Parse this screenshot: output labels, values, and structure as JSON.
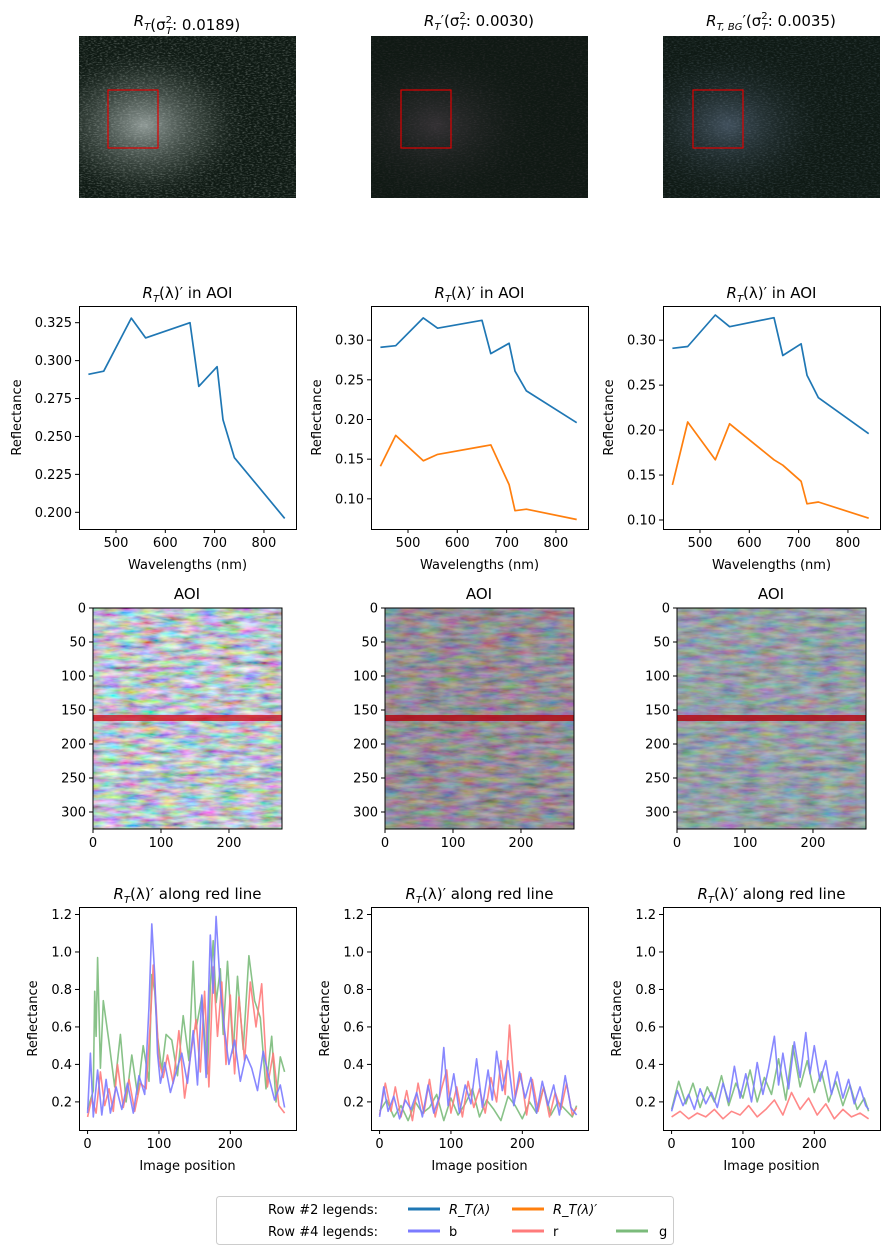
{
  "colors": {
    "rt": "#1f77b4",
    "rtp": "#ff7f0e",
    "b": "#7b7bff",
    "r": "#ff7b7b",
    "g": "#7bbb7b",
    "roi": "#e00000"
  },
  "row1": {
    "titles": [
      {
        "base": "R",
        "sub": "T",
        "prime": "",
        "text": "(σ",
        "sup2": "2",
        "sub2": "T",
        "val": ": 0.0189)"
      },
      {
        "base": "R",
        "sub": "T",
        "prime": "′",
        "text": "(σ",
        "sup2": "2",
        "sub2": "T",
        "val": ": 0.0030)"
      },
      {
        "base": "R",
        "sub": "T, BG",
        "prime": "′",
        "text": "(σ",
        "sup2": "2",
        "sub2": "T",
        "val": ": 0.0035)"
      }
    ]
  },
  "row2": {
    "title_suffix": " in AOI",
    "xlabel": "Wavelengths (nm)",
    "ylabel": "Reflectance"
  },
  "row3": {
    "title": "AOI"
  },
  "row4": {
    "title_suffix": " along red line",
    "xlabel": "Image position",
    "ylabel": "Reflectance"
  },
  "legend": {
    "row2_label": "Row #2 legends:",
    "row4_label": "Row #4 legends:",
    "rt_label": "R_T(λ)",
    "rtp_label": "R_T(λ)′",
    "b_label": "b",
    "r_label": "r",
    "g_label": "g"
  },
  "chart_data": [
    {
      "type": "line",
      "panel": "row2-col1",
      "title": "R_T(λ)′ in AOI",
      "xlabel": "Wavelengths (nm)",
      "ylabel": "Reflectance",
      "xlim": [
        425,
        865
      ],
      "ylim": [
        0.189,
        0.336
      ],
      "xticks": [
        500,
        600,
        700,
        800
      ],
      "yticks": [
        0.2,
        0.225,
        0.25,
        0.275,
        0.3,
        0.325
      ],
      "ytick_labels": [
        "0.200",
        "0.225",
        "0.250",
        "0.275",
        "0.300",
        "0.325"
      ],
      "series": [
        {
          "color_key": "rt",
          "x": [
            444,
            475,
            531,
            560,
            650,
            668,
            705,
            717,
            740,
            842
          ],
          "y": [
            0.291,
            0.293,
            0.328,
            0.315,
            0.325,
            0.283,
            0.296,
            0.261,
            0.236,
            0.196
          ]
        }
      ]
    },
    {
      "type": "line",
      "panel": "row2-col2",
      "title": "R_T(λ)′ in AOI",
      "xlabel": "Wavelengths (nm)",
      "ylabel": "Reflectance",
      "xlim": [
        425,
        865
      ],
      "ylim": [
        0.062,
        0.343
      ],
      "xticks": [
        500,
        600,
        700,
        800
      ],
      "yticks": [
        0.1,
        0.15,
        0.2,
        0.25,
        0.3
      ],
      "ytick_labels": [
        "0.10",
        "0.15",
        "0.20",
        "0.25",
        "0.30"
      ],
      "series": [
        {
          "color_key": "rt",
          "x": [
            444,
            475,
            531,
            560,
            650,
            668,
            705,
            717,
            740,
            842
          ],
          "y": [
            0.291,
            0.293,
            0.328,
            0.315,
            0.325,
            0.283,
            0.296,
            0.261,
            0.236,
            0.196
          ]
        },
        {
          "color_key": "rtp",
          "x": [
            444,
            475,
            531,
            560,
            650,
            668,
            705,
            717,
            740,
            842
          ],
          "y": [
            0.141,
            0.18,
            0.148,
            0.156,
            0.166,
            0.168,
            0.118,
            0.085,
            0.087,
            0.074
          ]
        }
      ]
    },
    {
      "type": "line",
      "panel": "row2-col3",
      "title": "R_T(λ)′ in AOI",
      "xlabel": "Wavelengths (nm)",
      "ylabel": "Reflectance",
      "xlim": [
        425,
        865
      ],
      "ylim": [
        0.09,
        0.338
      ],
      "xticks": [
        500,
        600,
        700,
        800
      ],
      "yticks": [
        0.1,
        0.15,
        0.2,
        0.25,
        0.3
      ],
      "ytick_labels": [
        "0.10",
        "0.15",
        "0.20",
        "0.25",
        "0.30"
      ],
      "series": [
        {
          "color_key": "rt",
          "x": [
            444,
            475,
            531,
            560,
            650,
            668,
            705,
            717,
            740,
            842
          ],
          "y": [
            0.291,
            0.293,
            0.328,
            0.315,
            0.325,
            0.283,
            0.296,
            0.261,
            0.236,
            0.196
          ]
        },
        {
          "color_key": "rtp",
          "x": [
            444,
            475,
            531,
            560,
            650,
            668,
            705,
            717,
            740,
            842
          ],
          "y": [
            0.139,
            0.209,
            0.167,
            0.207,
            0.167,
            0.161,
            0.143,
            0.118,
            0.12,
            0.102
          ]
        }
      ]
    },
    {
      "type": "line",
      "panel": "row4-col1",
      "title": "R_T(λ)′ along red line",
      "xlabel": "Image position",
      "ylabel": "Reflectance",
      "xlim": [
        -12,
        292
      ],
      "ylim": [
        0.05,
        1.24
      ],
      "xticks": [
        0,
        100,
        200
      ],
      "yticks": [
        0.2,
        0.4,
        0.6,
        0.8,
        1.0,
        1.2
      ],
      "ytick_labels": [
        "0.2",
        "0.4",
        "0.6",
        "0.8",
        "1.0",
        "1.2"
      ],
      "series": [
        {
          "color_key": "g",
          "x": [
            0,
            8,
            10,
            12,
            14,
            18,
            22,
            30,
            38,
            46,
            54,
            62,
            70,
            78,
            86,
            90,
            94,
            98,
            104,
            110,
            118,
            126,
            134,
            142,
            148,
            152,
            160,
            168,
            172,
            176,
            180,
            186,
            190,
            196,
            204,
            210,
            218,
            226,
            234,
            242,
            250,
            258,
            264,
            270,
            276
          ],
          "y": [
            0.16,
            0.26,
            0.79,
            0.55,
            0.97,
            0.38,
            0.74,
            0.52,
            0.28,
            0.56,
            0.2,
            0.45,
            0.24,
            0.5,
            0.31,
            0.88,
            0.79,
            0.55,
            0.37,
            0.56,
            0.53,
            0.34,
            0.66,
            0.42,
            0.95,
            0.59,
            0.76,
            0.35,
            0.82,
            1.06,
            0.73,
            0.91,
            0.56,
            0.95,
            0.46,
            0.87,
            0.48,
            0.98,
            0.74,
            0.65,
            0.27,
            0.55,
            0.2,
            0.44,
            0.36
          ]
        },
        {
          "color_key": "r",
          "x": [
            0,
            6,
            12,
            18,
            24,
            30,
            36,
            42,
            50,
            58,
            66,
            74,
            82,
            88,
            92,
            96,
            100,
            106,
            112,
            120,
            128,
            136,
            144,
            152,
            158,
            164,
            170,
            176,
            182,
            188,
            194,
            200,
            206,
            212,
            220,
            228,
            236,
            244,
            252,
            260,
            268,
            276
          ],
          "y": [
            0.12,
            0.22,
            0.14,
            0.36,
            0.18,
            0.27,
            0.15,
            0.4,
            0.17,
            0.32,
            0.15,
            0.3,
            0.27,
            0.63,
            0.93,
            0.71,
            0.42,
            0.33,
            0.45,
            0.3,
            0.58,
            0.22,
            0.44,
            0.64,
            0.36,
            0.79,
            0.28,
            0.92,
            0.55,
            0.84,
            0.4,
            0.77,
            0.35,
            0.76,
            0.42,
            0.84,
            0.6,
            0.83,
            0.28,
            0.46,
            0.18,
            0.14
          ]
        },
        {
          "color_key": "b",
          "x": [
            0,
            4,
            8,
            14,
            20,
            26,
            32,
            40,
            48,
            56,
            64,
            72,
            80,
            86,
            90,
            94,
            98,
            102,
            108,
            116,
            124,
            132,
            140,
            148,
            154,
            160,
            166,
            172,
            176,
            180,
            186,
            192,
            198,
            206,
            214,
            222,
            230,
            238,
            246,
            254,
            262,
            270,
            276
          ],
          "y": [
            0.14,
            0.46,
            0.12,
            0.37,
            0.13,
            0.32,
            0.14,
            0.28,
            0.16,
            0.3,
            0.14,
            0.34,
            0.24,
            0.71,
            1.15,
            0.88,
            0.46,
            0.3,
            0.41,
            0.25,
            0.36,
            0.46,
            0.3,
            0.58,
            0.29,
            0.77,
            0.33,
            1.09,
            0.78,
            1.19,
            0.81,
            0.58,
            0.4,
            0.53,
            0.31,
            0.45,
            0.38,
            0.26,
            0.47,
            0.33,
            0.21,
            0.29,
            0.17
          ]
        }
      ]
    },
    {
      "type": "line",
      "panel": "row4-col2",
      "title": "R_T(λ)′ along red line",
      "xlabel": "Image position",
      "ylabel": "Reflectance",
      "xlim": [
        -12,
        292
      ],
      "ylim": [
        0.05,
        1.24
      ],
      "xticks": [
        0,
        100,
        200
      ],
      "yticks": [
        0.2,
        0.4,
        0.6,
        0.8,
        1.0,
        1.2
      ],
      "ytick_labels": [
        "0.2",
        "0.4",
        "0.6",
        "0.8",
        "1.0",
        "1.2"
      ],
      "series": [
        {
          "color_key": "g",
          "x": [
            0,
            10,
            20,
            30,
            40,
            50,
            60,
            70,
            80,
            90,
            100,
            110,
            120,
            130,
            140,
            150,
            160,
            170,
            180,
            190,
            200,
            210,
            220,
            230,
            240,
            250,
            260,
            270,
            276
          ],
          "y": [
            0.15,
            0.21,
            0.12,
            0.18,
            0.1,
            0.2,
            0.14,
            0.17,
            0.24,
            0.1,
            0.22,
            0.13,
            0.19,
            0.27,
            0.12,
            0.21,
            0.16,
            0.1,
            0.23,
            0.18,
            0.11,
            0.2,
            0.14,
            0.28,
            0.13,
            0.2,
            0.16,
            0.12,
            0.18
          ]
        },
        {
          "color_key": "r",
          "x": [
            0,
            8,
            16,
            22,
            30,
            38,
            46,
            54,
            62,
            70,
            78,
            86,
            94,
            100,
            108,
            116,
            124,
            132,
            140,
            148,
            156,
            164,
            170,
            176,
            182,
            190,
            198,
            206,
            214,
            222,
            230,
            238,
            246,
            254,
            262,
            270,
            276
          ],
          "y": [
            0.13,
            0.3,
            0.15,
            0.28,
            0.12,
            0.26,
            0.1,
            0.3,
            0.14,
            0.32,
            0.12,
            0.26,
            0.37,
            0.14,
            0.28,
            0.12,
            0.31,
            0.17,
            0.27,
            0.14,
            0.33,
            0.2,
            0.42,
            0.24,
            0.61,
            0.22,
            0.35,
            0.13,
            0.32,
            0.15,
            0.28,
            0.12,
            0.25,
            0.16,
            0.3,
            0.13,
            0.17
          ]
        },
        {
          "color_key": "b",
          "x": [
            0,
            6,
            12,
            20,
            28,
            36,
            44,
            52,
            60,
            68,
            76,
            84,
            90,
            96,
            104,
            112,
            120,
            128,
            136,
            144,
            152,
            158,
            164,
            172,
            180,
            188,
            196,
            204,
            212,
            220,
            228,
            236,
            244,
            252,
            260,
            268,
            276
          ],
          "y": [
            0.12,
            0.28,
            0.15,
            0.23,
            0.11,
            0.21,
            0.16,
            0.25,
            0.12,
            0.29,
            0.14,
            0.23,
            0.49,
            0.18,
            0.35,
            0.14,
            0.29,
            0.19,
            0.43,
            0.17,
            0.37,
            0.21,
            0.47,
            0.26,
            0.42,
            0.18,
            0.36,
            0.22,
            0.33,
            0.14,
            0.31,
            0.18,
            0.29,
            0.13,
            0.34,
            0.17,
            0.13
          ]
        }
      ]
    },
    {
      "type": "line",
      "panel": "row4-col3",
      "title": "R_T(λ)′ along red line",
      "xlabel": "Image position",
      "ylabel": "Reflectance",
      "xlim": [
        -12,
        292
      ],
      "ylim": [
        0.05,
        1.24
      ],
      "xticks": [
        0,
        100,
        200
      ],
      "yticks": [
        0.2,
        0.4,
        0.6,
        0.8,
        1.0,
        1.2
      ],
      "ytick_labels": [
        "0.2",
        "0.4",
        "0.6",
        "0.8",
        "1.0",
        "1.2"
      ],
      "series": [
        {
          "color_key": "g",
          "x": [
            0,
            10,
            20,
            30,
            40,
            50,
            60,
            70,
            80,
            90,
            100,
            110,
            120,
            130,
            140,
            150,
            160,
            170,
            180,
            190,
            200,
            210,
            220,
            230,
            240,
            250,
            260,
            270,
            276
          ],
          "y": [
            0.16,
            0.31,
            0.19,
            0.3,
            0.17,
            0.28,
            0.2,
            0.34,
            0.18,
            0.3,
            0.22,
            0.37,
            0.2,
            0.33,
            0.24,
            0.43,
            0.21,
            0.5,
            0.28,
            0.42,
            0.25,
            0.36,
            0.2,
            0.31,
            0.18,
            0.29,
            0.16,
            0.22,
            0.15
          ]
        },
        {
          "color_key": "r",
          "x": [
            0,
            12,
            24,
            36,
            48,
            60,
            72,
            84,
            96,
            108,
            120,
            132,
            144,
            156,
            168,
            180,
            192,
            204,
            216,
            228,
            240,
            252,
            264,
            276
          ],
          "y": [
            0.12,
            0.15,
            0.11,
            0.14,
            0.12,
            0.16,
            0.11,
            0.15,
            0.13,
            0.18,
            0.12,
            0.16,
            0.21,
            0.13,
            0.25,
            0.16,
            0.22,
            0.13,
            0.19,
            0.11,
            0.16,
            0.12,
            0.14,
            0.11
          ]
        },
        {
          "color_key": "b",
          "x": [
            0,
            8,
            16,
            24,
            32,
            40,
            48,
            56,
            64,
            72,
            80,
            88,
            96,
            104,
            112,
            120,
            128,
            136,
            144,
            150,
            156,
            164,
            172,
            180,
            188,
            194,
            200,
            208,
            216,
            224,
            232,
            240,
            248,
            256,
            264,
            272,
            276
          ],
          "y": [
            0.15,
            0.26,
            0.18,
            0.24,
            0.16,
            0.27,
            0.19,
            0.25,
            0.17,
            0.3,
            0.2,
            0.39,
            0.22,
            0.35,
            0.2,
            0.41,
            0.24,
            0.38,
            0.55,
            0.29,
            0.46,
            0.27,
            0.52,
            0.33,
            0.57,
            0.35,
            0.5,
            0.31,
            0.42,
            0.24,
            0.36,
            0.22,
            0.32,
            0.19,
            0.28,
            0.18,
            0.16
          ]
        }
      ]
    }
  ]
}
